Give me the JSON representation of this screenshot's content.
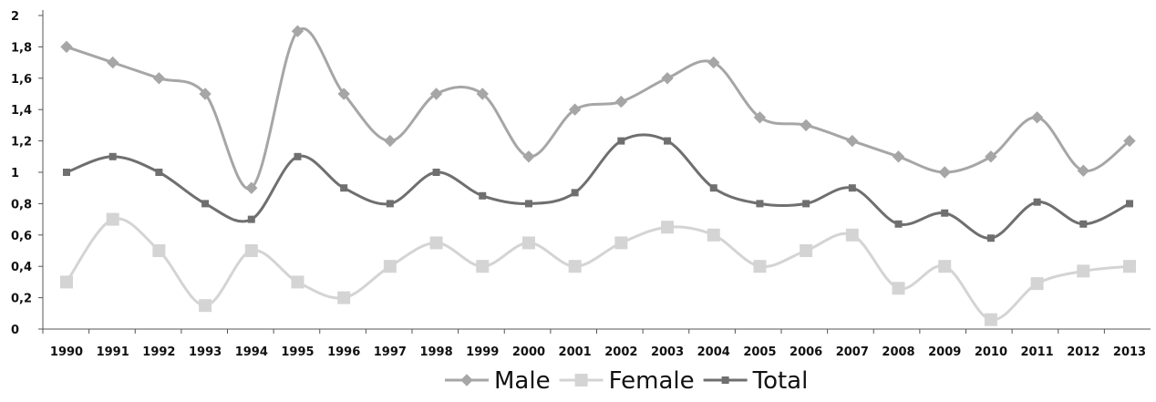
{
  "chart_data": {
    "type": "line",
    "title": "",
    "xlabel": "",
    "ylabel": "",
    "x": [
      "1990",
      "1991",
      "1992",
      "1993",
      "1994",
      "1995",
      "1996",
      "1997",
      "1998",
      "1999",
      "2000",
      "2001",
      "2002",
      "2003",
      "2004",
      "2005",
      "2006",
      "2007",
      "2008",
      "2009",
      "2010",
      "2011",
      "2012",
      "2013"
    ],
    "ylim": [
      0,
      2
    ],
    "yticks": [
      "0",
      "0,2",
      "0,4",
      "0,6",
      "0,8",
      "1",
      "1,2",
      "1,4",
      "1,6",
      "1,8",
      "2"
    ],
    "grid": false,
    "legend_position": "bottom",
    "series": [
      {
        "name": "Male",
        "color": "#a6a6a6",
        "marker": "diamond",
        "values": [
          1.8,
          1.7,
          1.6,
          1.5,
          0.9,
          1.9,
          1.5,
          1.2,
          1.5,
          1.5,
          1.1,
          1.4,
          1.45,
          1.6,
          1.7,
          1.35,
          1.3,
          1.2,
          1.1,
          1.0,
          1.1,
          1.35,
          1.01,
          1.2
        ]
      },
      {
        "name": "Female",
        "color": "#d4d4d4",
        "marker": "square",
        "values": [
          0.3,
          0.7,
          0.5,
          0.15,
          0.5,
          0.3,
          0.2,
          0.4,
          0.55,
          0.4,
          0.55,
          0.4,
          0.55,
          0.65,
          0.6,
          0.4,
          0.5,
          0.6,
          0.26,
          0.4,
          0.06,
          0.29,
          0.37,
          0.4
        ]
      },
      {
        "name": "Total",
        "color": "#6f6f6f",
        "marker": "square",
        "values": [
          1.0,
          1.1,
          1.0,
          0.8,
          0.7,
          1.1,
          0.9,
          0.8,
          1.0,
          0.85,
          0.8,
          0.87,
          1.2,
          1.2,
          0.9,
          0.8,
          0.8,
          0.9,
          0.67,
          0.74,
          0.58,
          0.81,
          0.67,
          0.8
        ]
      }
    ]
  }
}
